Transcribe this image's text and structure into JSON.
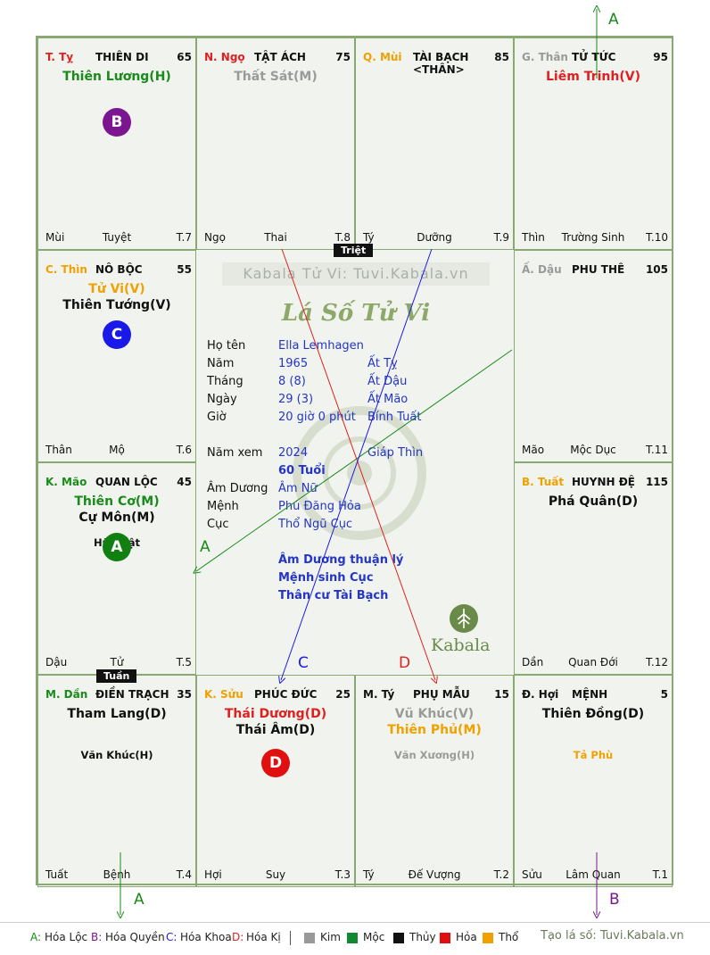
{
  "watermark": "Kabala Tử Vi: Tuvi.Kabala.vn",
  "center_logo": "Lá Số Tử Vi",
  "brand": "Kabala",
  "tags": {
    "triet": "Triệt",
    "tuan": "Tuần"
  },
  "cells": [
    {
      "id": "ty",
      "stem": "T. Tỵ",
      "stem_color": "#e02020",
      "title": "THIÊN DI",
      "num": "65",
      "stars": [
        {
          "text": "Thiên Lương(H)",
          "color": "#1a8a1a"
        }
      ],
      "minor": "",
      "circle": "B",
      "circle_color": "#7b1690",
      "bottom": [
        "Mùi",
        "Tuyệt",
        "T.7"
      ]
    },
    {
      "id": "ngo",
      "stem": "N. Ngọ",
      "stem_color": "#e02020",
      "title": "TẬT ÁCH",
      "num": "75",
      "stars": [
        {
          "text": "Thất Sát(M)",
          "color": "#9a9a9a"
        }
      ],
      "minor": "",
      "circle": "",
      "circle_color": "",
      "bottom": [
        "Ngọ",
        "Thai",
        "T.8"
      ]
    },
    {
      "id": "mui",
      "stem": "Q. Mùi",
      "stem_color": "#f0a000",
      "title": "TÀI BẠCH <THÂN>",
      "num": "85",
      "stars": [],
      "minor": "",
      "circle": "",
      "circle_color": "",
      "bottom": [
        "Tý",
        "Dưỡng",
        "T.9"
      ]
    },
    {
      "id": "than",
      "stem": "G. Thân",
      "stem_color": "#9a9a9a",
      "title": "TỬ TỨC",
      "num": "95",
      "stars": [
        {
          "text": "Liêm Trinh(V)",
          "color": "#e02020"
        }
      ],
      "minor": "",
      "circle": "",
      "circle_color": "",
      "bottom": [
        "Thìn",
        "Trường Sinh",
        "T.10"
      ]
    },
    {
      "id": "thin",
      "stem": "C. Thìn",
      "stem_color": "#f0a000",
      "title": "NÔ BỘC",
      "num": "55",
      "stars": [
        {
          "text": "Tử Vi(V)",
          "color": "#f0a000"
        },
        {
          "text": "Thiên Tướng(V)",
          "color": "#111"
        }
      ],
      "minor": "",
      "circle": "C",
      "circle_color": "#1a1ae8",
      "bottom": [
        "Thân",
        "Mộ",
        "T.6"
      ]
    },
    {
      "id": "dau",
      "stem": "Ấ. Dậu",
      "stem_color": "#9a9a9a",
      "title": "PHU THÊ",
      "num": "105",
      "stars": [],
      "minor": "",
      "circle": "",
      "circle_color": "",
      "bottom": [
        "Mão",
        "Mộc Dục",
        "T.11"
      ]
    },
    {
      "id": "mao",
      "stem": "K. Mão",
      "stem_color": "#1a8a1a",
      "title": "QUAN LỘC",
      "num": "45",
      "stars": [
        {
          "text": "Thiên Cơ(M)",
          "color": "#1a8a1a"
        },
        {
          "text": "Cự Môn(M)",
          "color": "#111"
        }
      ],
      "minor": "Hữu Bật",
      "minor_color": "#111",
      "circle": "A",
      "circle_color": "#108010",
      "bottom": [
        "Dậu",
        "Tử",
        "T.5"
      ]
    },
    {
      "id": "tuat",
      "stem": "B. Tuất",
      "stem_color": "#f0a000",
      "title": "HUYNH ĐỆ",
      "num": "115",
      "stars": [
        {
          "text": "Phá Quân(D)",
          "color": "#111"
        }
      ],
      "minor": "",
      "circle": "",
      "circle_color": "",
      "bottom": [
        "Dần",
        "Quan Đới",
        "T.12"
      ]
    },
    {
      "id": "dan",
      "stem": "M. Dần",
      "stem_color": "#1a8a1a",
      "title": "ĐIỀN TRẠCH",
      "num": "35",
      "stars": [
        {
          "text": "Tham Lang(D)",
          "color": "#111"
        }
      ],
      "minor": "Văn Khúc(H)",
      "minor_color": "#111",
      "circle": "",
      "circle_color": "",
      "bottom": [
        "Tuất",
        "Bệnh",
        "T.4"
      ]
    },
    {
      "id": "suu",
      "stem": "K. Sửu",
      "stem_color": "#f0a000",
      "title": "PHÚC ĐỨC",
      "num": "25",
      "stars": [
        {
          "text": "Thái Dương(D)",
          "color": "#e02020"
        },
        {
          "text": "Thái Âm(D)",
          "color": "#111"
        }
      ],
      "minor": "",
      "circle": "D",
      "circle_color": "#e01010",
      "bottom": [
        "Hợi",
        "Suy",
        "T.3"
      ]
    },
    {
      "id": "tyy",
      "stem": "M. Tý",
      "stem_color": "#111",
      "title": "PHỤ MẪU",
      "num": "15",
      "stars": [
        {
          "text": "Vũ Khúc(V)",
          "color": "#9a9a9a"
        },
        {
          "text": "Thiên Phủ(M)",
          "color": "#f0a000"
        }
      ],
      "minor": "Văn Xương(H)",
      "minor_color": "#9a9a9a",
      "circle": "",
      "circle_color": "",
      "bottom": [
        "Tý",
        "Đế Vượng",
        "T.2"
      ]
    },
    {
      "id": "hoi",
      "stem": "Đ. Hợi",
      "stem_color": "#111",
      "title": "MỆNH",
      "num": "5",
      "stars": [
        {
          "text": "Thiên Đồng(D)",
          "color": "#111"
        }
      ],
      "minor": "Tả Phù",
      "minor_color": "#f0a000",
      "circle": "",
      "circle_color": "",
      "bottom": [
        "Sửu",
        "Lâm Quan",
        "T.1"
      ]
    }
  ],
  "info": [
    {
      "label": "Họ tên",
      "v1": "Ella Lemhagen",
      "v2": ""
    },
    {
      "label": "Năm",
      "v1": "1965",
      "v2": "Ất Tỵ"
    },
    {
      "label": "Tháng",
      "v1": "8  (8)",
      "v2": "Ất Dậu"
    },
    {
      "label": "Ngày",
      "v1": "29  (3)",
      "v2": "Ất Mão"
    },
    {
      "label": "Giờ",
      "v1": "20 giờ 0 phút",
      "v2": "Bính Tuất"
    },
    {
      "label": "Năm xem",
      "v1": "2024",
      "v2": "Giáp Thìn"
    },
    {
      "label": "",
      "v1": "60 Tuổi",
      "v2": ""
    },
    {
      "label": "Âm Dương",
      "v1": "Âm Nữ",
      "v2": ""
    },
    {
      "label": "Mệnh",
      "v1": "Phú Đăng Hỏa",
      "v2": ""
    },
    {
      "label": "Cục",
      "v1": "Thổ Ngũ Cục",
      "v2": ""
    }
  ],
  "notes": [
    "Âm Dương thuận lý",
    "Mệnh sinh Cục",
    "Thân cư Tài Bạch"
  ],
  "arrow_labels": {
    "a_top": "A",
    "a_left": "A",
    "c": "C",
    "d": "D",
    "a_bottom": "A",
    "b_bottom": "B"
  },
  "legend": {
    "hoa": [
      {
        "key": "A:",
        "text": "Hóa Lộc",
        "color": "#1a8a1a"
      },
      {
        "key": "B:",
        "text": "Hóa Quyền",
        "color": "#7b1690"
      },
      {
        "key": "C:",
        "text": "Hóa Khoa",
        "color": "#1a1ae8"
      },
      {
        "key": "D:",
        "text": "Hóa Kị",
        "color": "#e02020"
      }
    ],
    "elements": [
      {
        "text": "Kim",
        "color": "#999999"
      },
      {
        "text": "Mộc",
        "color": "#108a30"
      },
      {
        "text": "Thủy",
        "color": "#111111"
      },
      {
        "text": "Hỏa",
        "color": "#e01010"
      },
      {
        "text": "Thổ",
        "color": "#f0a000"
      }
    ],
    "site": "Tạo lá số: Tuvi.Kabala.vn"
  }
}
